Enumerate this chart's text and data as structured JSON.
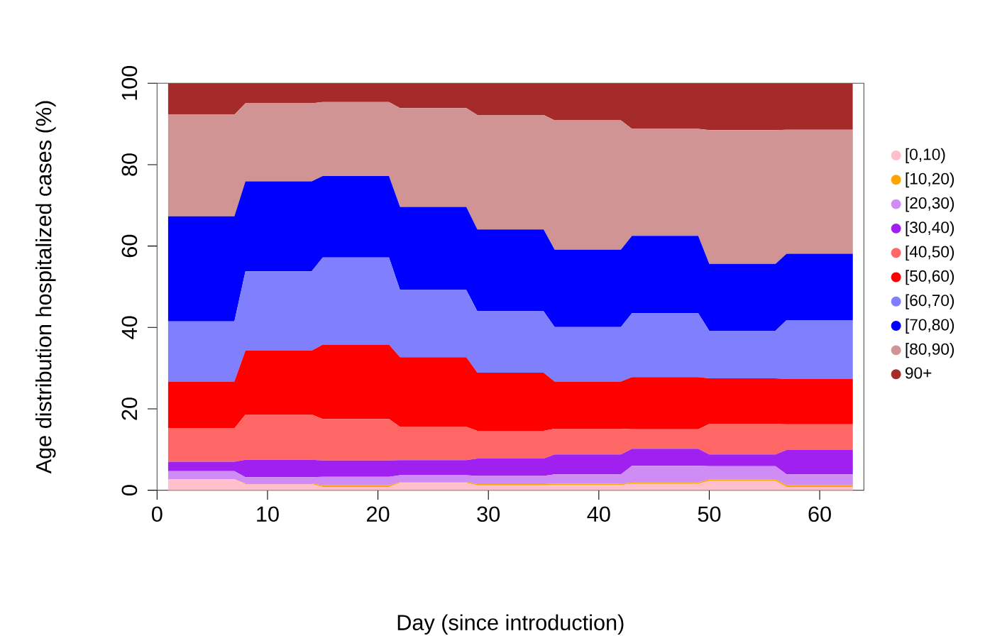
{
  "chart_data": {
    "type": "area",
    "stacked": true,
    "xlabel": "Day (since introduction)",
    "ylabel": "Age distribution hospitalized cases (%)",
    "legend": "right",
    "x": [
      1,
      7,
      8,
      14,
      15,
      21,
      22,
      28,
      29,
      35,
      36,
      42,
      43,
      49,
      50,
      56,
      57,
      63
    ],
    "xlim": [
      0,
      64
    ],
    "xticks": [
      0,
      10,
      20,
      30,
      40,
      50,
      60
    ],
    "ylim": [
      0,
      100
    ],
    "yticks": [
      0,
      20,
      40,
      60,
      80,
      100
    ],
    "series": [
      {
        "name": "[0,10)",
        "color": "#ffc0cb",
        "values": [
          2.7,
          2.7,
          1.5,
          1.5,
          0.8,
          0.8,
          1.8,
          1.8,
          1.2,
          1.2,
          1.3,
          1.3,
          1.6,
          1.6,
          2.3,
          2.3,
          0.8,
          0.8
        ]
      },
      {
        "name": "[10,20)",
        "color": "#ffa500",
        "values": [
          0.0,
          0.0,
          0.2,
          0.2,
          0.4,
          0.4,
          0.2,
          0.2,
          0.3,
          0.3,
          0.3,
          0.3,
          0.3,
          0.3,
          0.4,
          0.4,
          0.4,
          0.4
        ]
      },
      {
        "name": "[20,30)",
        "color": "#d08cf5",
        "values": [
          2.0,
          2.0,
          1.5,
          1.5,
          2.1,
          2.1,
          1.7,
          1.7,
          2.0,
          2.0,
          2.3,
          2.3,
          4.1,
          4.1,
          3.2,
          3.2,
          2.7,
          2.7
        ]
      },
      {
        "name": "[30,40)",
        "color": "#a020f0",
        "values": [
          2.3,
          2.3,
          4.3,
          4.3,
          4.0,
          4.0,
          3.7,
          3.7,
          4.3,
          4.3,
          4.9,
          4.9,
          4.2,
          4.2,
          2.9,
          2.9,
          6.0,
          6.0
        ]
      },
      {
        "name": "[40,50)",
        "color": "#ff6666",
        "values": [
          8.2,
          8.2,
          11.1,
          11.1,
          10.2,
          10.2,
          8.2,
          8.2,
          6.8,
          6.8,
          6.3,
          6.3,
          4.8,
          4.8,
          7.5,
          7.5,
          6.3,
          6.3
        ]
      },
      {
        "name": "[50,60)",
        "color": "#ff0000",
        "values": [
          11.5,
          11.5,
          15.7,
          15.7,
          18.3,
          18.3,
          17.1,
          17.1,
          14.3,
          14.3,
          11.6,
          11.6,
          12.8,
          12.8,
          11.2,
          11.2,
          11.1,
          11.1
        ]
      },
      {
        "name": "[60,70)",
        "color": "#8080ff",
        "values": [
          14.8,
          14.8,
          19.5,
          19.5,
          21.4,
          21.4,
          16.5,
          16.5,
          15.1,
          15.1,
          13.4,
          13.4,
          15.7,
          15.7,
          11.7,
          11.7,
          14.5,
          14.5
        ]
      },
      {
        "name": "[70,80)",
        "color": "#0000ff",
        "values": [
          25.8,
          25.8,
          22.1,
          22.1,
          20.0,
          20.0,
          20.4,
          20.4,
          20.1,
          20.1,
          19.0,
          19.0,
          19.0,
          19.0,
          16.4,
          16.4,
          16.3,
          16.3
        ]
      },
      {
        "name": "[80,90)",
        "color": "#d09494",
        "values": [
          25.0,
          25.0,
          19.2,
          19.2,
          18.2,
          18.2,
          24.3,
          24.3,
          28.1,
          28.1,
          31.8,
          31.8,
          26.3,
          26.3,
          32.9,
          32.9,
          30.5,
          30.5
        ]
      },
      {
        "name": "90+",
        "color": "#a52a2a",
        "values": [
          7.7,
          7.7,
          4.9,
          4.9,
          4.6,
          4.6,
          6.1,
          6.1,
          7.8,
          7.8,
          9.1,
          9.1,
          11.2,
          11.2,
          11.5,
          11.5,
          11.4,
          11.4
        ]
      }
    ]
  }
}
